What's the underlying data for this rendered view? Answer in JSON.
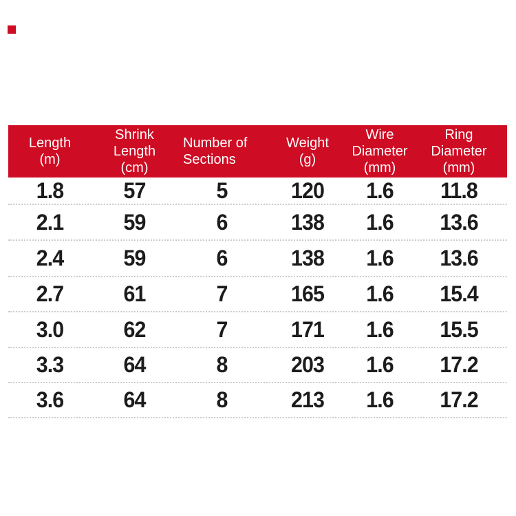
{
  "theme": {
    "red": "#ce0c24",
    "header_text": "#ffffff",
    "body_text": "#1c1c1c",
    "divider": "#cbcbcb",
    "background": "#ffffff"
  },
  "brand": {
    "mark": "red-square"
  },
  "table": {
    "columns": [
      {
        "id": "length",
        "label": "Length\n(m)",
        "align": "center"
      },
      {
        "id": "shrink-length",
        "label": "Shrink\nLength\n(cm)",
        "align": "center"
      },
      {
        "id": "sections",
        "label": "Number of\nSections",
        "align": "left"
      },
      {
        "id": "weight",
        "label": "Weight\n(g)",
        "align": "center"
      },
      {
        "id": "wire-diameter",
        "label": "Wire\nDiameter\n(mm)",
        "align": "center"
      },
      {
        "id": "ring-diameter",
        "label": "Ring\nDiameter\n(mm)",
        "align": "center"
      }
    ],
    "rows": [
      [
        "1.8",
        "57",
        "5",
        "120",
        "1.6",
        "11.8"
      ],
      [
        "2.1",
        "59",
        "6",
        "138",
        "1.6",
        "13.6"
      ],
      [
        "2.4",
        "59",
        "6",
        "138",
        "1.6",
        "13.6"
      ],
      [
        "2.7",
        "61",
        "7",
        "165",
        "1.6",
        "15.4"
      ],
      [
        "3.0",
        "62",
        "7",
        "171",
        "1.6",
        "15.5"
      ],
      [
        "3.3",
        "64",
        "8",
        "203",
        "1.6",
        "17.2"
      ],
      [
        "3.6",
        "64",
        "8",
        "213",
        "1.6",
        "17.2"
      ]
    ]
  },
  "chart_data": {
    "type": "table",
    "title": "",
    "columns": [
      "Length (m)",
      "Shrink Length (cm)",
      "Number of Sections",
      "Weight (g)",
      "Wire Diameter (mm)",
      "Ring Diameter (mm)"
    ],
    "rows": [
      [
        1.8,
        57,
        5,
        120,
        1.6,
        11.8
      ],
      [
        2.1,
        59,
        6,
        138,
        1.6,
        13.6
      ],
      [
        2.4,
        59,
        6,
        138,
        1.6,
        13.6
      ],
      [
        2.7,
        61,
        7,
        165,
        1.6,
        15.4
      ],
      [
        3.0,
        62,
        7,
        171,
        1.6,
        15.5
      ],
      [
        3.3,
        64,
        8,
        203,
        1.6,
        17.2
      ],
      [
        3.6,
        64,
        8,
        213,
        1.6,
        17.2
      ]
    ]
  }
}
